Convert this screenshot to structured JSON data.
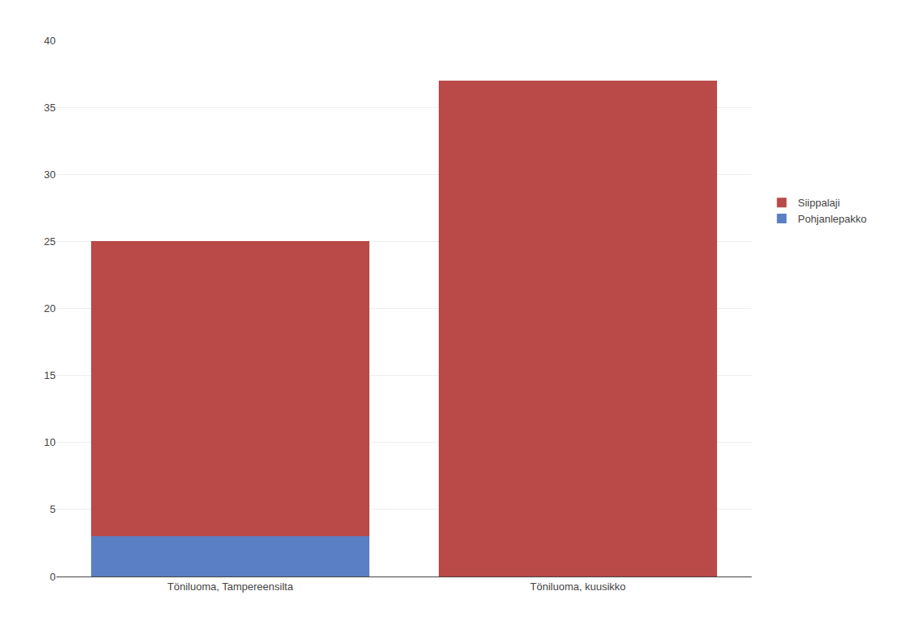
{
  "chart_data": {
    "type": "bar",
    "stacked": true,
    "categories": [
      "Töniluoma, Tampereensilta",
      "Töniluoma, kuusikko"
    ],
    "series": [
      {
        "name": "Pohjanlepakko",
        "color": "#5b7fc4",
        "values": [
          3,
          0
        ]
      },
      {
        "name": "Siippalaji",
        "color": "#b94a48",
        "values": [
          22,
          37
        ]
      }
    ],
    "ylim": [
      0,
      40
    ],
    "yticks": [
      0,
      5,
      10,
      15,
      20,
      25,
      30,
      35,
      40
    ],
    "grid": true,
    "legend": "right"
  }
}
